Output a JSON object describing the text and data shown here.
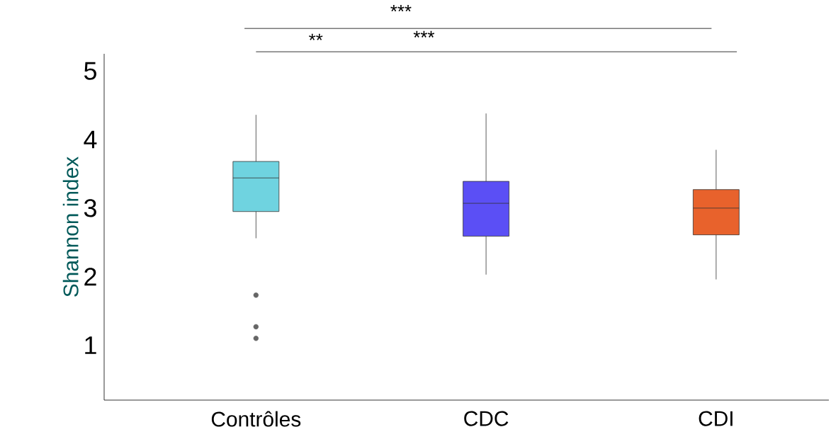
{
  "chart_data": {
    "type": "box",
    "ylabel": "Shannon index",
    "categories": [
      "Contrôles",
      "CDC",
      "CDI"
    ],
    "colors": [
      "#6fd3e0",
      "#5b4ff5",
      "#e8622c"
    ],
    "boxes": [
      {
        "low": 2.56,
        "q1": 2.95,
        "median": 3.44,
        "q3": 3.68,
        "high": 4.36,
        "outliers": [
          1.73,
          1.27,
          1.1
        ]
      },
      {
        "low": 2.03,
        "q1": 2.59,
        "median": 3.07,
        "q3": 3.39,
        "high": 4.38
      },
      {
        "low": 1.96,
        "q1": 2.61,
        "median": 3.0,
        "q3": 3.27,
        "high": 3.85
      }
    ],
    "ylim": [
      0.2,
      5.25
    ],
    "yticks": [
      1,
      2,
      3,
      4,
      5
    ],
    "annotations": [
      "***",
      "**",
      "***"
    ]
  }
}
